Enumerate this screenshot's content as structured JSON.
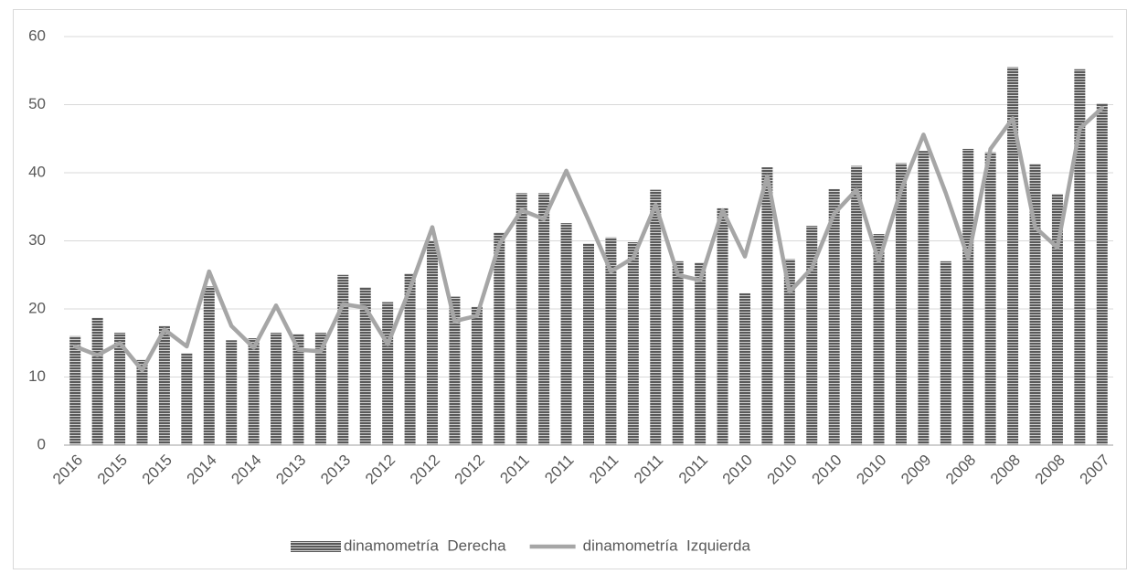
{
  "chart_data": {
    "type": "bar_line",
    "categories": [
      "2016",
      null,
      "2015",
      null,
      "2015",
      null,
      "2014",
      null,
      "2014",
      null,
      "2013",
      null,
      "2013",
      null,
      "2012",
      null,
      "2012",
      null,
      "2012",
      null,
      "2011",
      null,
      "2011",
      null,
      "2011",
      null,
      "2011",
      null,
      "2011",
      null,
      "2010",
      null,
      "2010",
      null,
      "2010",
      null,
      "2010",
      null,
      "2009",
      null,
      "2008",
      null,
      "2008",
      null,
      "2008",
      null,
      "2007"
    ],
    "series": [
      {
        "name": "dinamometría  Derecha",
        "type": "bar",
        "color": "#595959",
        "values": [
          16,
          18.7,
          16.5,
          12.5,
          17.5,
          13.5,
          23.3,
          15.4,
          15.7,
          16.5,
          16.3,
          16.5,
          25,
          23.2,
          21,
          25.2,
          30,
          21.8,
          20.3,
          31.2,
          37,
          37,
          32.6,
          29.6,
          30.5,
          29.8,
          37.5,
          27,
          26.8,
          34.8,
          22.3,
          40.8,
          27.3,
          32.2,
          37.6,
          41,
          31,
          41.4,
          43.2,
          27,
          43.5,
          43,
          55.5,
          41.3,
          36.9,
          55.2,
          50.2
        ]
      },
      {
        "name": "dinamometría  Izquierda",
        "type": "line",
        "color": "#a6a6a6",
        "values": [
          14.5,
          13.2,
          15,
          11,
          17,
          14.5,
          25.5,
          17.5,
          14.3,
          20.5,
          14,
          13.8,
          20.7,
          20.2,
          14.8,
          23,
          32,
          18.2,
          19,
          29.5,
          34.5,
          33.2,
          40.3,
          33,
          25.5,
          27.5,
          35.3,
          25,
          24.2,
          34.5,
          27.7,
          39.5,
          22.5,
          26,
          34,
          37.5,
          27,
          37.5,
          45.6,
          37,
          27.5,
          43.5,
          48,
          32,
          29,
          46.5,
          49.5
        ]
      }
    ],
    "ylim": [
      0,
      60
    ],
    "yticks": [
      0,
      10,
      20,
      30,
      40,
      50,
      60
    ],
    "grid": true,
    "legend": "bottom"
  }
}
